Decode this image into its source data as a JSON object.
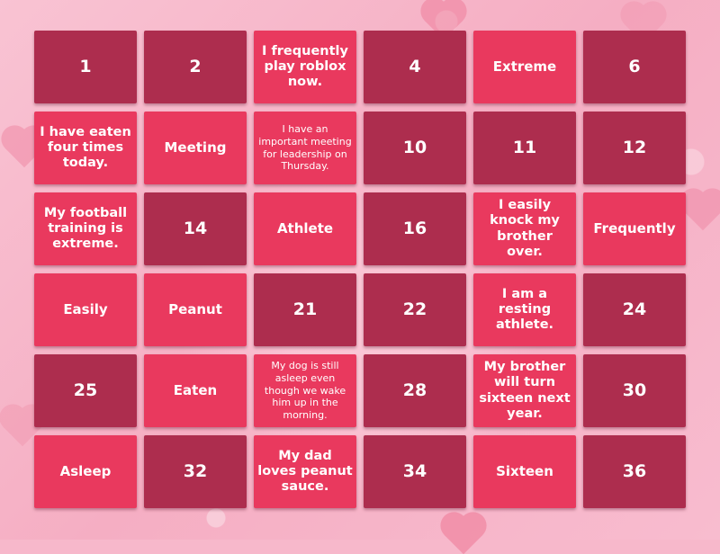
{
  "tiles": [
    {
      "text": "1",
      "tone": "dark",
      "size": "num"
    },
    {
      "text": "2",
      "tone": "dark",
      "size": "num"
    },
    {
      "text": "I frequently play roblox now.",
      "tone": "light",
      "size": "sent"
    },
    {
      "text": "4",
      "tone": "dark",
      "size": "num"
    },
    {
      "text": "Extreme",
      "tone": "light",
      "size": "word"
    },
    {
      "text": "6",
      "tone": "dark",
      "size": "num"
    },
    {
      "text": "I have eaten four times today.",
      "tone": "light",
      "size": "sent"
    },
    {
      "text": "Meeting",
      "tone": "light",
      "size": "word"
    },
    {
      "text": "I have an important meeting for leadership on Thursday.",
      "tone": "light",
      "size": "small"
    },
    {
      "text": "10",
      "tone": "dark",
      "size": "num"
    },
    {
      "text": "11",
      "tone": "dark",
      "size": "num"
    },
    {
      "text": "12",
      "tone": "dark",
      "size": "num"
    },
    {
      "text": "My football training is extreme.",
      "tone": "light",
      "size": "sent"
    },
    {
      "text": "14",
      "tone": "dark",
      "size": "num"
    },
    {
      "text": "Athlete",
      "tone": "light",
      "size": "word"
    },
    {
      "text": "16",
      "tone": "dark",
      "size": "num"
    },
    {
      "text": "I easily knock my brother over.",
      "tone": "light",
      "size": "sent"
    },
    {
      "text": "Frequently",
      "tone": "light",
      "size": "word"
    },
    {
      "text": "Easily",
      "tone": "light",
      "size": "word"
    },
    {
      "text": "Peanut",
      "tone": "light",
      "size": "word"
    },
    {
      "text": "21",
      "tone": "dark",
      "size": "num"
    },
    {
      "text": "22",
      "tone": "dark",
      "size": "num"
    },
    {
      "text": "I am a resting athlete.",
      "tone": "light",
      "size": "sent"
    },
    {
      "text": "24",
      "tone": "dark",
      "size": "num"
    },
    {
      "text": "25",
      "tone": "dark",
      "size": "num"
    },
    {
      "text": "Eaten",
      "tone": "light",
      "size": "word"
    },
    {
      "text": "My dog is still asleep even though we wake him up in the morning.",
      "tone": "light",
      "size": "small"
    },
    {
      "text": "28",
      "tone": "dark",
      "size": "num"
    },
    {
      "text": "My brother will turn sixteen next year.",
      "tone": "light",
      "size": "sent"
    },
    {
      "text": "30",
      "tone": "dark",
      "size": "num"
    },
    {
      "text": "Asleep",
      "tone": "light",
      "size": "word"
    },
    {
      "text": "32",
      "tone": "dark",
      "size": "num"
    },
    {
      "text": "My dad loves peanut sauce.",
      "tone": "light",
      "size": "sent"
    },
    {
      "text": "34",
      "tone": "dark",
      "size": "num"
    },
    {
      "text": "Sixteen",
      "tone": "light",
      "size": "word"
    },
    {
      "text": "36",
      "tone": "dark",
      "size": "num"
    }
  ],
  "colors": {
    "dark_tile": "#ad2d4e",
    "light_tile": "#e9395e",
    "background": "#f7b8cb",
    "text": "#ffffff"
  }
}
